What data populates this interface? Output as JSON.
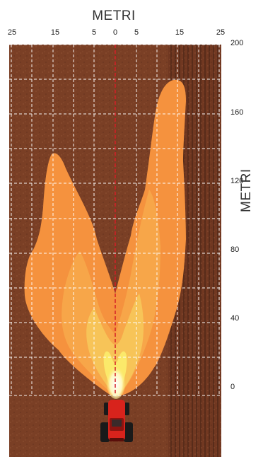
{
  "diagram": {
    "title": "METRI",
    "y_axis_label": "METRI",
    "x_ticks": [
      "25",
      "15",
      "5",
      "0",
      "5",
      "15",
      "25"
    ],
    "y_ticks": [
      "200",
      "160",
      "120",
      "80",
      "40",
      "0"
    ],
    "colors": {
      "soil": "#7a3f25",
      "spray_outer": "#f5923e",
      "spray_mid": "#f7a94a",
      "spray_inner": "#f6c85a",
      "spray_core": "#fbe96a",
      "nozzle": "#ffffff",
      "grid": "#ffffff",
      "centerline": "#d41f26",
      "tractor": "#d8231c"
    },
    "icons": [
      "tractor-icon"
    ]
  }
}
